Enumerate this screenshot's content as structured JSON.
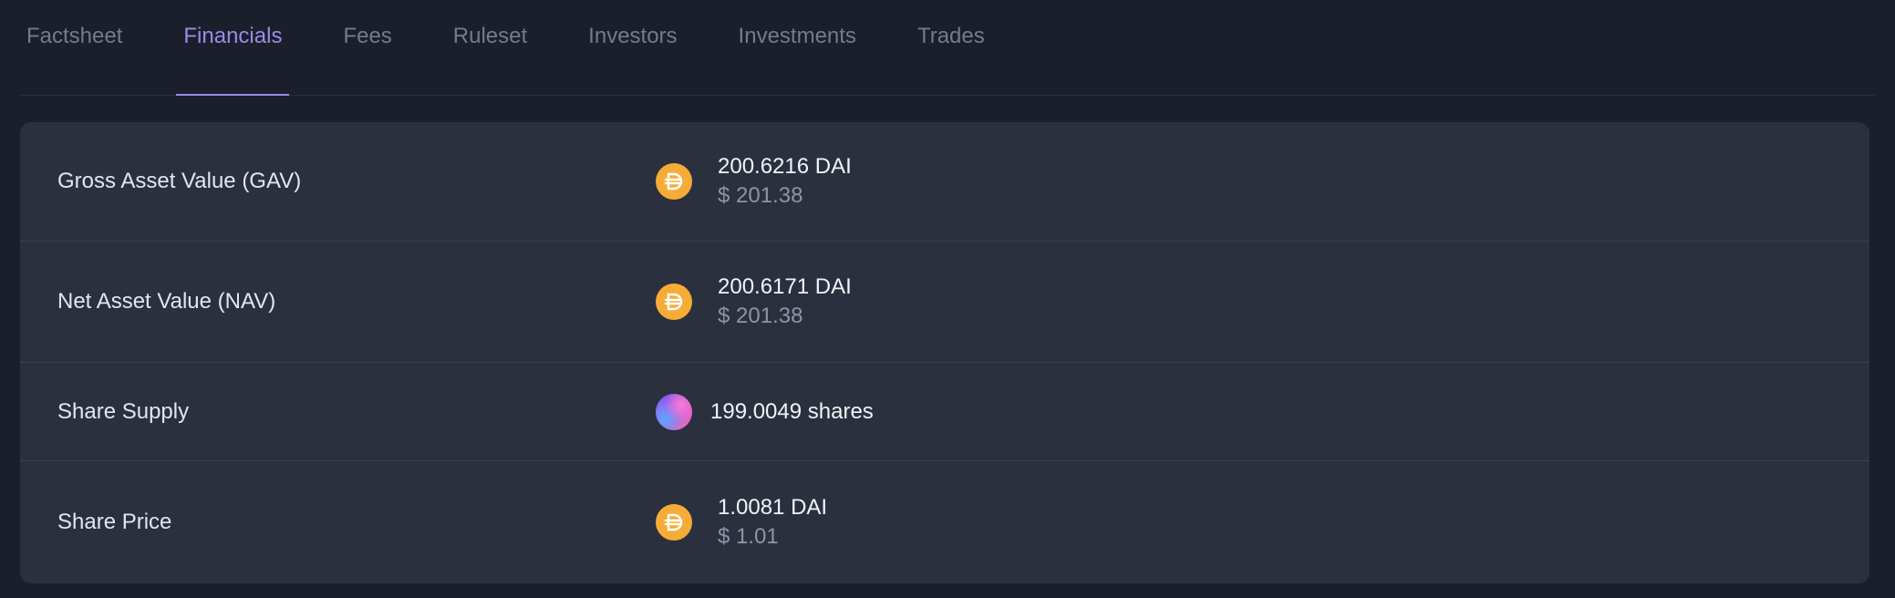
{
  "tabs": [
    {
      "label": "Factsheet",
      "active": false
    },
    {
      "label": "Financials",
      "active": true
    },
    {
      "label": "Fees",
      "active": false
    },
    {
      "label": "Ruleset",
      "active": false
    },
    {
      "label": "Investors",
      "active": false
    },
    {
      "label": "Investments",
      "active": false
    },
    {
      "label": "Trades",
      "active": false
    }
  ],
  "colors": {
    "background": "#1a1f2b",
    "card": "#2a303d",
    "accent": "#9b8ce8",
    "dai": "#f5ac37"
  },
  "financials": {
    "gav": {
      "label": "Gross Asset Value (GAV)",
      "token_icon": "dai-icon",
      "amount": "200.6216 DAI",
      "usd": "$ 201.38"
    },
    "nav": {
      "label": "Net Asset Value (NAV)",
      "token_icon": "dai-icon",
      "amount": "200.6171 DAI",
      "usd": "$ 201.38"
    },
    "share_supply": {
      "label": "Share Supply",
      "token_icon": "share-token-icon",
      "amount": "199.0049 shares"
    },
    "share_price": {
      "label": "Share Price",
      "token_icon": "dai-icon",
      "amount": "1.0081 DAI",
      "usd": "$ 1.01"
    }
  }
}
